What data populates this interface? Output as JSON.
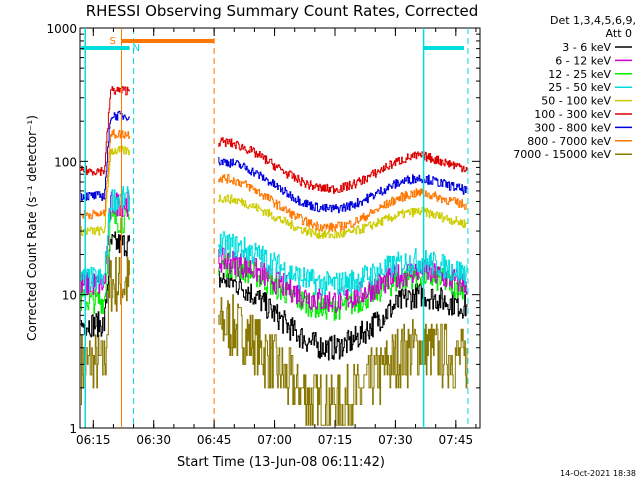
{
  "chart_data": {
    "type": "line",
    "title": "RHESSI Observing Summary Count Rates, Corrected",
    "xlabel": "Start Time (13-Jun-08 06:11:42)",
    "ylabel": "Corrected Count Rate (s⁻¹ detector⁻¹)",
    "yscale": "log",
    "ylim": [
      1,
      1000
    ],
    "ytick_labels": [
      "1",
      "10",
      "100",
      "1000"
    ],
    "xlim": [
      "06:11:42",
      "07:51:00"
    ],
    "xtick_labels": [
      "06:15",
      "06:30",
      "06:45",
      "07:00",
      "07:15",
      "07:30",
      "07:45"
    ],
    "x_minutes": [
      3.3,
      18.3,
      33.3,
      48.3,
      63.3,
      78.3,
      93.3
    ],
    "legend": {
      "title": "Det 1,3,4,5,6,9,",
      "subtitle": "Att 0",
      "placement": "right"
    },
    "markers": {
      "s_label": "S",
      "n_label": "N",
      "orange_bar_start": "06:22",
      "orange_bar_end": "06:45",
      "cyan_bar1_end": "06:24",
      "cyan_bar2_start": "07:37",
      "orange_dashed_line": "06:45",
      "cyan_dashed_lines": [
        "06:25",
        "07:48"
      ],
      "cyan_solid_lines": [
        "06:13",
        "07:37"
      ]
    },
    "data_gap": [
      "06:24",
      "06:46"
    ],
    "series": [
      {
        "name": "3 - 6 keV",
        "color": "#000000",
        "level_first": 6,
        "level_second": 13,
        "trough": 4,
        "peak": 10
      },
      {
        "name": "6 - 12 keV",
        "color": "#cc00cc",
        "level_first": 12,
        "level_second": 18,
        "trough": 9,
        "peak": 15
      },
      {
        "name": "12 - 25 keV",
        "color": "#00ee00",
        "level_first": 9,
        "level_second": 17,
        "trough": 8,
        "peak": 14
      },
      {
        "name": "25 - 50 keV",
        "color": "#00dddd",
        "level_first": 13,
        "level_second": 24,
        "trough": 12,
        "peak": 18
      },
      {
        "name": "50 - 100 keV",
        "color": "#cccc00",
        "level_first": 30,
        "level_second": 53,
        "trough": 28,
        "peak": 42
      },
      {
        "name": "100 - 300 keV",
        "color": "#dd0000",
        "level_first": 85,
        "level_second": 140,
        "trough": 62,
        "peak": 110
      },
      {
        "name": "300 - 800 keV",
        "color": "#0000dd",
        "level_first": 55,
        "level_second": 100,
        "trough": 44,
        "peak": 75
      },
      {
        "name": "800 - 7000 keV",
        "color": "#ff7700",
        "level_first": 40,
        "level_second": 75,
        "trough": 32,
        "peak": 58
      },
      {
        "name": "7000 - 15000 keV",
        "color": "#887700",
        "level_first": 3,
        "level_second": 6,
        "trough": 1.5,
        "peak": 4
      }
    ]
  },
  "footer": {
    "timestamp": "14-Oct-2021 18:38"
  }
}
